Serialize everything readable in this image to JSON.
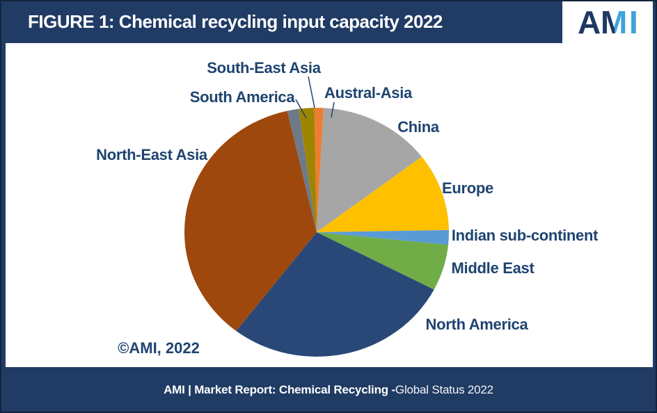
{
  "header": {
    "title": "FIGURE 1: Chemical recycling input capacity 2022",
    "logo": {
      "letter_a": "A",
      "letter_m": "M",
      "letter_i": "I",
      "color_dark": "#1F3864",
      "color_light": "#3FA3DC"
    }
  },
  "footer": {
    "bold_part": "AMI | Market Report: Chemical Recycling -",
    "regular_part": " Global Status 2022"
  },
  "colors": {
    "bar_navy": "#203B64",
    "panel_white": "#FFFFFF",
    "label_text": "#1E4470"
  },
  "chart_data": {
    "type": "pie",
    "title": "Chemical recycling input capacity 2022",
    "legend_position": "none",
    "labels_position": "outside",
    "direction": "clockwise",
    "start_angle_deg": -1,
    "values_are": "percent, estimated from slice angles",
    "slices": [
      {
        "label": "Austral-Asia",
        "value": 1.1,
        "color": "#ED7D31"
      },
      {
        "label": "China",
        "value": 13.8,
        "color": "#A6A6A6"
      },
      {
        "label": "Europe",
        "value": 10.1,
        "color": "#FFC000"
      },
      {
        "label": "Indian sub-continent",
        "value": 1.9,
        "color": "#5B9BD5"
      },
      {
        "label": "Middle East",
        "value": 6.0,
        "color": "#70AD47"
      },
      {
        "label": "North America",
        "value": 27.8,
        "color": "#294878"
      },
      {
        "label": "North-East Asia",
        "value": 36.0,
        "color": "#9E480E"
      },
      {
        "label": "South America",
        "value": 1.4,
        "color": "#6E7A87"
      },
      {
        "label": "South-East Asia",
        "value": 1.9,
        "color": "#9E8500"
      }
    ],
    "copyright_note": "©AMI, 2022"
  }
}
